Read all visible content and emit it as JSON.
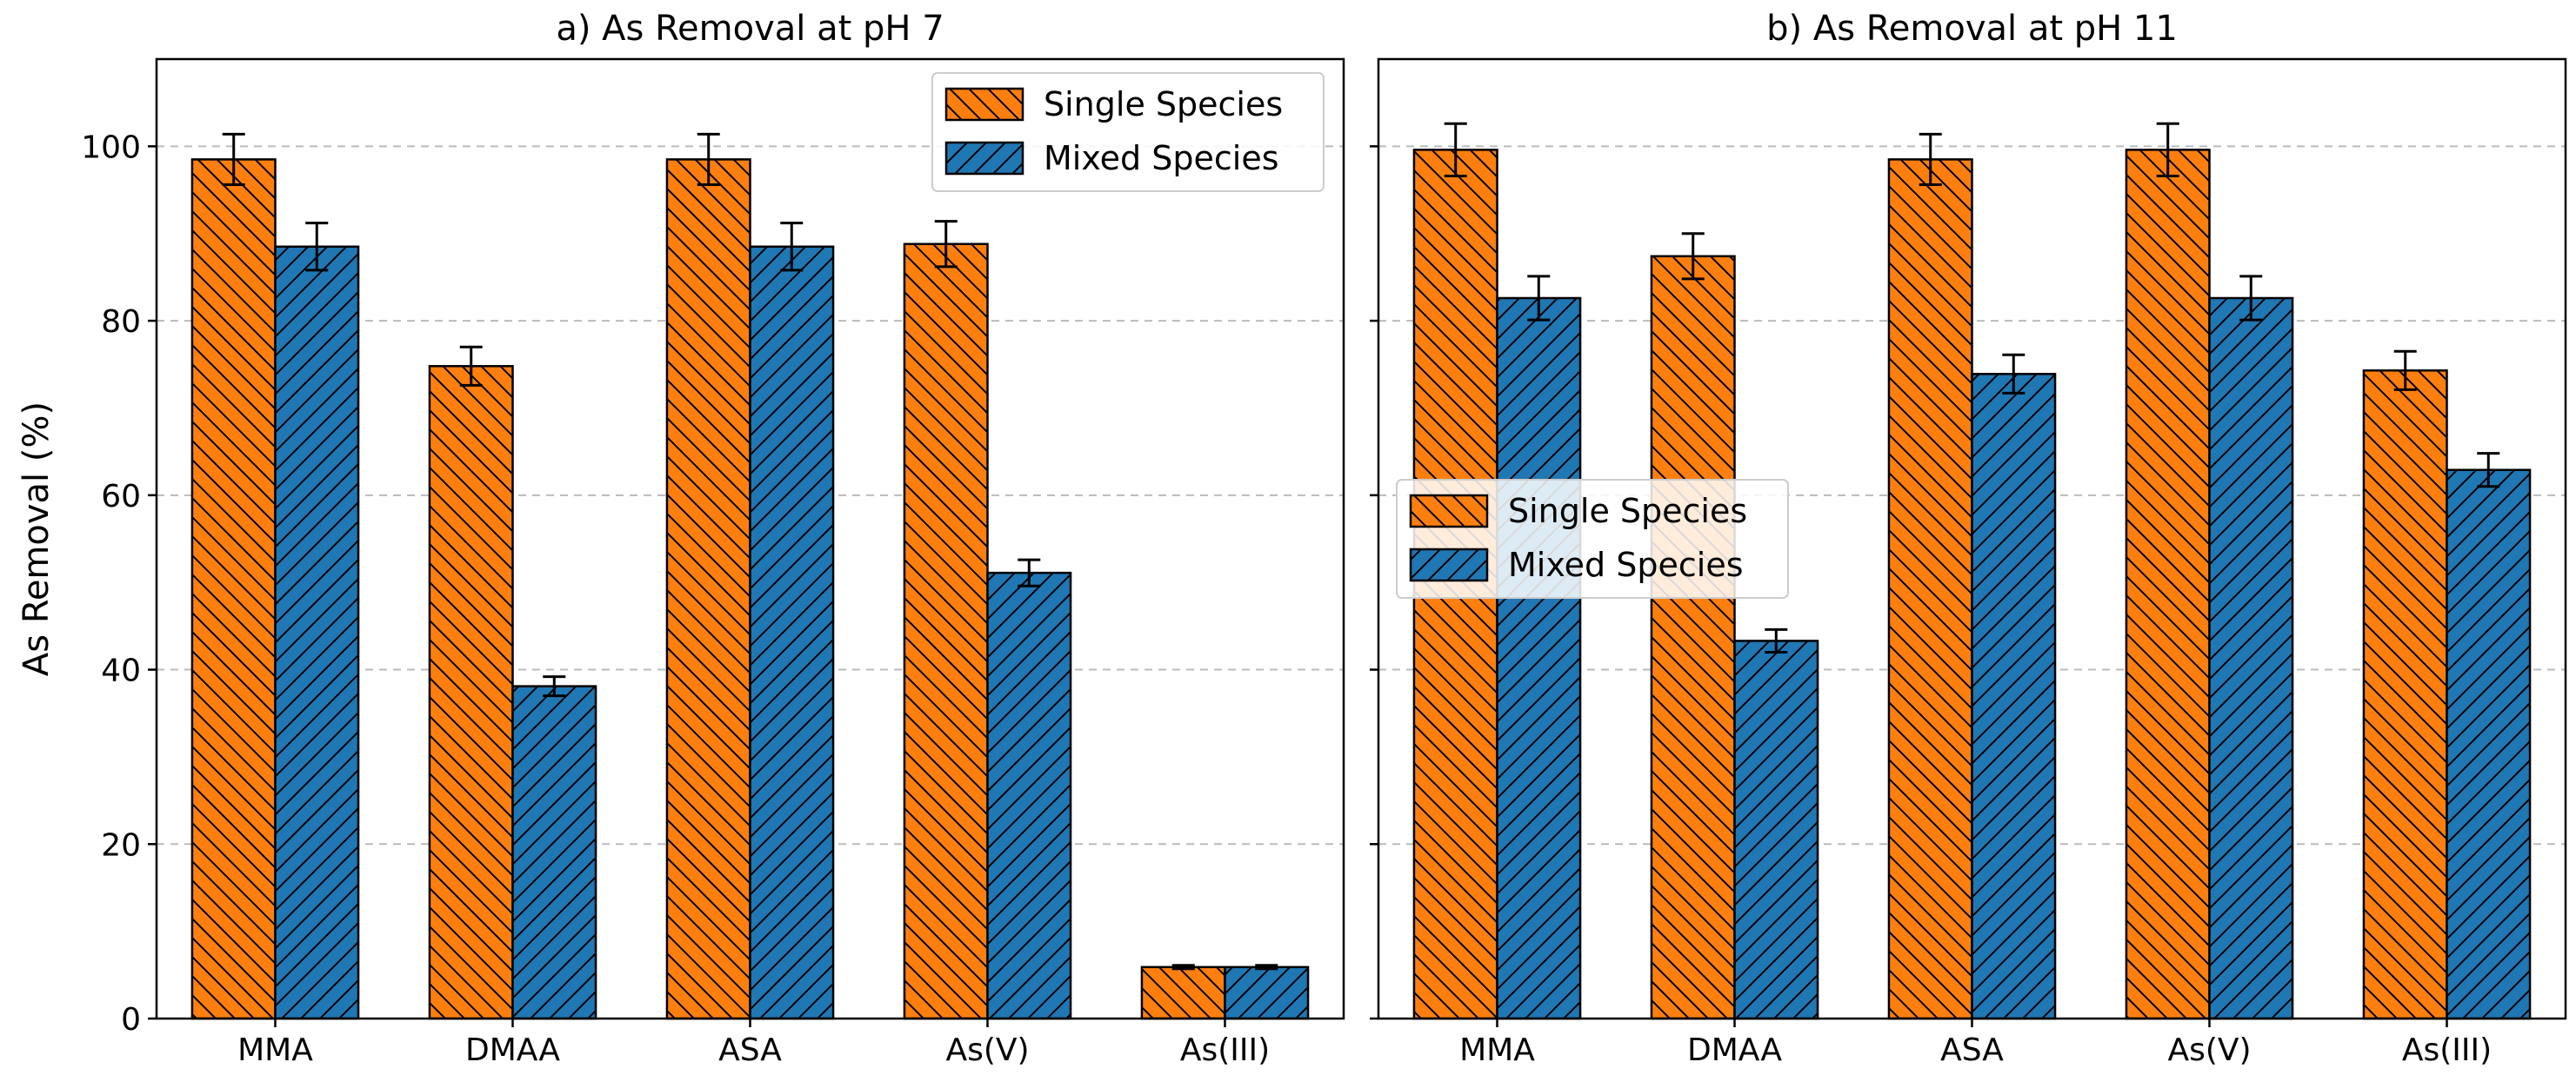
{
  "chart_data": [
    {
      "type": "bar",
      "title": "a) As Removal at pH 7",
      "xlabel": "",
      "ylabel": "As Removal (%)",
      "ylim": [
        0,
        110
      ],
      "yticks": [
        0,
        20,
        40,
        60,
        80,
        100
      ],
      "grid": true,
      "legend_position": "top-right",
      "categories": [
        "MMA",
        "DMAA",
        "ASA",
        "As(V)",
        "As(III)"
      ],
      "series": [
        {
          "name": "Single Species",
          "color": "#ff7f0e",
          "hatch": "backslash",
          "values": [
            98.5,
            74.8,
            98.5,
            88.8,
            5.9
          ],
          "errors": [
            2.9,
            2.2,
            2.9,
            2.6,
            0.2
          ]
        },
        {
          "name": "Mixed Species",
          "color": "#1f77b4",
          "hatch": "slash",
          "values": [
            88.5,
            38.1,
            88.5,
            51.1,
            5.9
          ],
          "errors": [
            2.7,
            1.1,
            2.7,
            1.5,
            0.2
          ]
        }
      ]
    },
    {
      "type": "bar",
      "title": "b) As Removal at pH 11",
      "xlabel": "",
      "ylabel": "",
      "ylim": [
        0,
        110
      ],
      "yticks": [
        0,
        20,
        40,
        60,
        80,
        100
      ],
      "grid": true,
      "legend_position": "center-left",
      "categories": [
        "MMA",
        "DMAA",
        "ASA",
        "As(V)",
        "As(III)"
      ],
      "series": [
        {
          "name": "Single Species",
          "color": "#ff7f0e",
          "hatch": "backslash",
          "values": [
            99.6,
            87.4,
            98.5,
            99.6,
            74.3
          ],
          "errors": [
            3.0,
            2.6,
            2.9,
            3.0,
            2.2
          ]
        },
        {
          "name": "Mixed Species",
          "color": "#1f77b4",
          "hatch": "slash",
          "values": [
            82.6,
            43.3,
            73.9,
            82.6,
            62.9
          ],
          "errors": [
            2.5,
            1.3,
            2.2,
            2.5,
            1.9
          ]
        }
      ]
    }
  ]
}
